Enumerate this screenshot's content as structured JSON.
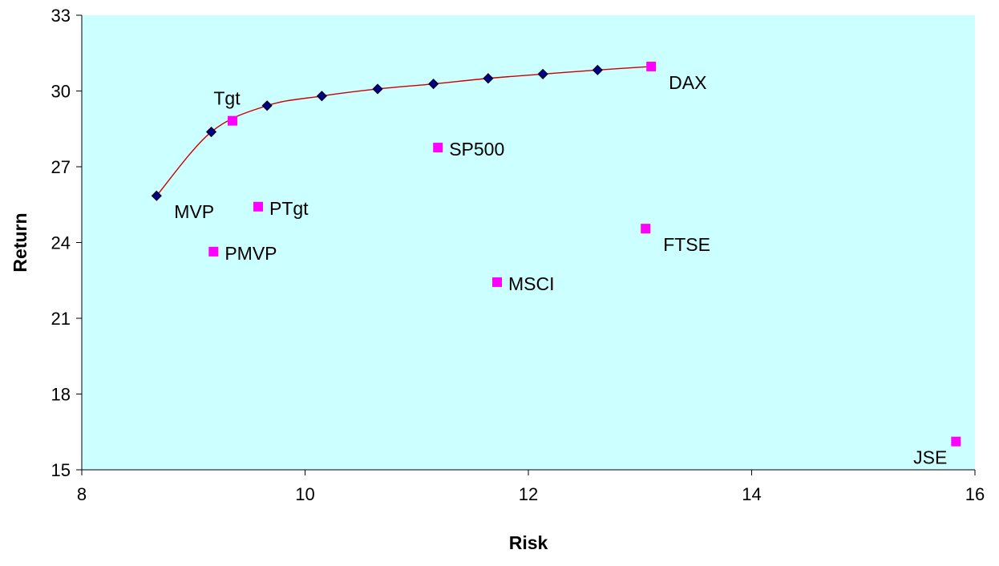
{
  "chart_data": {
    "type": "scatter",
    "xlabel": "Risk",
    "ylabel": "Return",
    "xlim": [
      8,
      16
    ],
    "ylim": [
      15,
      33
    ],
    "xticks": [
      8,
      10,
      12,
      14,
      16
    ],
    "yticks": [
      15,
      18,
      21,
      24,
      27,
      30,
      33
    ],
    "grid": false,
    "plot_background": "#ccffff",
    "frontier": {
      "color": "#cc0000",
      "marker_color": "#000080",
      "points": [
        {
          "x": 8.67,
          "y": 25.85
        },
        {
          "x": 9.16,
          "y": 28.38
        },
        {
          "x": 9.66,
          "y": 29.42
        },
        {
          "x": 10.15,
          "y": 29.8
        },
        {
          "x": 10.65,
          "y": 30.08
        },
        {
          "x": 11.15,
          "y": 30.28
        },
        {
          "x": 11.64,
          "y": 30.5
        },
        {
          "x": 12.13,
          "y": 30.67
        },
        {
          "x": 12.62,
          "y": 30.83
        }
      ]
    },
    "assets": {
      "color": "#ff00ff",
      "points": [
        {
          "x": 9.35,
          "y": 28.82,
          "label": "Tgt",
          "pos": "above"
        },
        {
          "x": 9.18,
          "y": 23.64,
          "label": "PMVP",
          "pos": "right"
        },
        {
          "x": 9.58,
          "y": 25.42,
          "label": "PTgt",
          "pos": "right"
        },
        {
          "x": 11.19,
          "y": 27.76,
          "label": "SP500",
          "pos": "right"
        },
        {
          "x": 11.72,
          "y": 22.43,
          "label": "MSCI",
          "pos": "right"
        },
        {
          "x": 13.05,
          "y": 24.55,
          "label": "FTSE",
          "pos": "right-below"
        },
        {
          "x": 13.1,
          "y": 30.97,
          "label": "DAX",
          "pos": "right-below"
        },
        {
          "x": 15.83,
          "y": 16.12,
          "label": "JSE",
          "pos": "left-below"
        }
      ]
    },
    "annotations": [
      {
        "x": 8.67,
        "y": 25.85,
        "label": "MVP",
        "pos": "right-below"
      }
    ]
  }
}
